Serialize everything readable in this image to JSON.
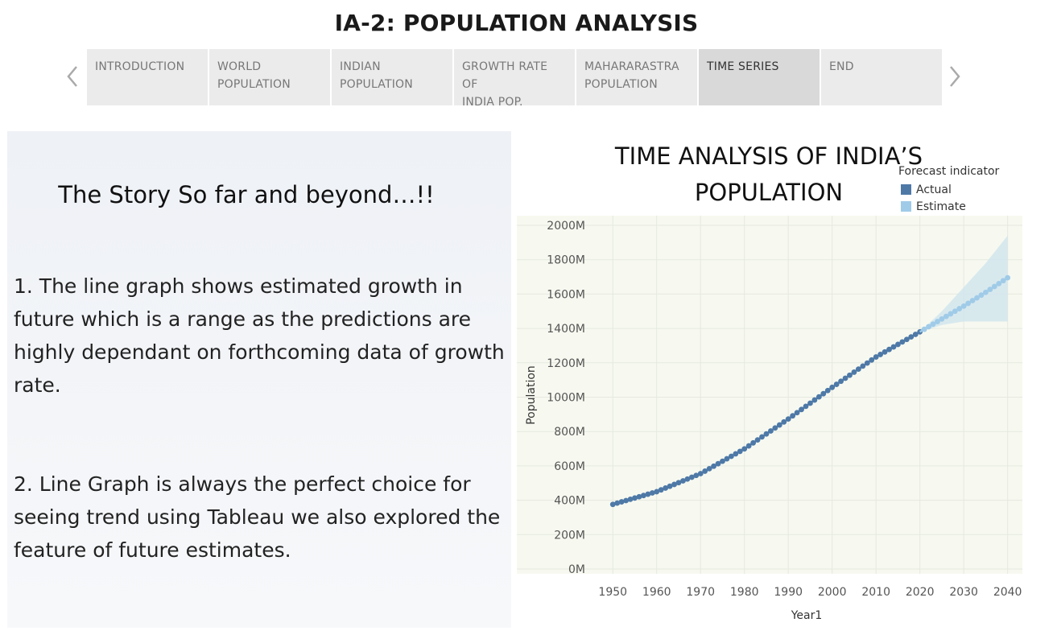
{
  "story": {
    "title": "IA-2: POPULATION ANALYSIS",
    "tabs": [
      {
        "label": "INTRODUCTION",
        "active": false
      },
      {
        "label": "WORLD\nPOPULATION",
        "active": false
      },
      {
        "label": "INDIAN\nPOPULATION",
        "active": false
      },
      {
        "label": "GROWTH RATE OF\nINDIA POP.",
        "active": false
      },
      {
        "label": "MAHARARASTRA\nPOPULATION",
        "active": false
      },
      {
        "label": "TIME SERIES",
        "active": true
      },
      {
        "label": "END",
        "active": false
      }
    ]
  },
  "left_panel": {
    "heading": "The Story So far and beyond…!!",
    "point1": "1. The line graph shows estimated growth in future which is a range  as the predictions are highly dependant on forthcoming data of growth rate.",
    "point2": "2. Line Graph is always the perfect choice for seeing trend using Tableau we also explored the feature of future estimates."
  },
  "chart_data": {
    "type": "line",
    "title": "TIME ANALYSIS OF INDIA’S\nPOPULATION",
    "xlabel": "Year1",
    "ylabel": "Population",
    "xlim": [
      1945,
      2043
    ],
    "ylim": [
      0,
      2000
    ],
    "x_ticks": [
      1950,
      1960,
      1970,
      1980,
      1990,
      2000,
      2010,
      2020,
      2030,
      2040
    ],
    "y_ticks": [
      0,
      200,
      400,
      600,
      800,
      1000,
      1200,
      1400,
      1600,
      1800,
      2000
    ],
    "y_tick_labels": [
      "0M",
      "200M",
      "400M",
      "600M",
      "800M",
      "1000M",
      "1200M",
      "1400M",
      "1600M",
      "1800M",
      "2000M"
    ],
    "grid": true,
    "legend": {
      "title": "Forecast indicator",
      "placement": "top-right",
      "items": [
        {
          "label": "Actual",
          "color": "#4e79a7"
        },
        {
          "label": "Estimate",
          "color": "#a0cbe8"
        }
      ]
    },
    "actual_anchor_years": [
      1950,
      1960,
      1970,
      1980,
      1990,
      2000,
      2010,
      2020
    ],
    "actual_anchor_values": [
      376,
      450,
      555,
      699,
      873,
      1057,
      1234,
      1380
    ],
    "estimate_years": [
      2020,
      2025,
      2030,
      2035,
      2040
    ],
    "estimate_values": [
      1380,
      1455,
      1530,
      1610,
      1695
    ],
    "estimate_upper": [
      1380,
      1500,
      1640,
      1780,
      1940
    ],
    "estimate_lower": [
      1380,
      1420,
      1440,
      1440,
      1440
    ],
    "colors": {
      "actual": "#4e79a7",
      "estimate": "#a0cbe8",
      "band": "#cfe5ee",
      "plot_bg": "#f7f9f0",
      "grid": "#e6e9e0"
    }
  }
}
